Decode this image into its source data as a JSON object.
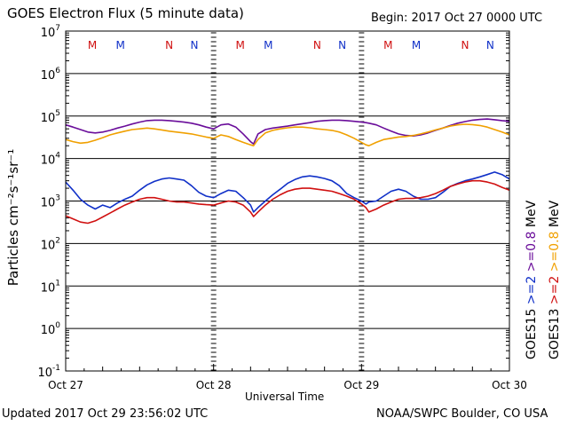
{
  "header": {
    "title": "GOES Electron Flux (5 minute data)",
    "begin": "Begin: 2017 Oct 27 0000 UTC"
  },
  "footer": {
    "updated": "Updated 2017 Oct 29 23:56:02 UTC",
    "credit": "NOAA/SWPC Boulder, CO USA"
  },
  "chart_data": {
    "type": "line",
    "title": "GOES Electron Flux (5 minute data)",
    "xlabel": "Universal Time",
    "ylabel": "Particles cm⁻²s⁻¹sr⁻¹",
    "y_scale": "log",
    "ylim": [
      0.1,
      10000000
    ],
    "y_ticks": [
      {
        "base": "10",
        "exp": "7"
      },
      {
        "base": "10",
        "exp": "6"
      },
      {
        "base": "10",
        "exp": "5"
      },
      {
        "base": "10",
        "exp": "4"
      },
      {
        "base": "10",
        "exp": "3"
      },
      {
        "base": "10",
        "exp": "2"
      },
      {
        "base": "10",
        "exp": "1"
      },
      {
        "base": "10",
        "exp": "0"
      },
      {
        "base": "10",
        "exp": "-1"
      }
    ],
    "x_ticks": [
      "Oct 27",
      "Oct 28",
      "Oct 29",
      "Oct 30"
    ],
    "xlim_days": [
      0,
      3
    ],
    "threshold": 1000,
    "markers": [
      {
        "label": "M",
        "day": 0.18,
        "color": "#d01010"
      },
      {
        "label": "M",
        "day": 0.37,
        "color": "#1030c8"
      },
      {
        "label": "N",
        "day": 0.7,
        "color": "#d01010"
      },
      {
        "label": "N",
        "day": 0.87,
        "color": "#1030c8"
      },
      {
        "label": "M",
        "day": 1.18,
        "color": "#d01010"
      },
      {
        "label": "M",
        "day": 1.37,
        "color": "#1030c8"
      },
      {
        "label": "N",
        "day": 1.7,
        "color": "#d01010"
      },
      {
        "label": "N",
        "day": 1.87,
        "color": "#1030c8"
      },
      {
        "label": "M",
        "day": 2.18,
        "color": "#d01010"
      },
      {
        "label": "M",
        "day": 2.37,
        "color": "#1030c8"
      },
      {
        "label": "N",
        "day": 2.7,
        "color": "#d01010"
      },
      {
        "label": "N",
        "day": 2.87,
        "color": "#1030c8"
      }
    ],
    "legend": [
      {
        "prefix": "GOES15",
        "label": ">=2",
        "unit": "MeV",
        "color": "#1030c8"
      },
      {
        "prefix": "GOES13",
        "label": ">=2",
        "unit": "MeV",
        "color": "#d01010"
      },
      {
        "prefix": "",
        "label": ">=0.8",
        "unit": "MeV",
        "color": "#6a0d9a"
      },
      {
        "prefix": "",
        "label": ">=0.8",
        "unit": "MeV",
        "color": "#f0a000"
      }
    ],
    "series": [
      {
        "name": "GOES15 >=2 MeV",
        "color": "#1030c8",
        "x": [
          0.0,
          0.05,
          0.1,
          0.15,
          0.2,
          0.25,
          0.3,
          0.35,
          0.4,
          0.45,
          0.5,
          0.55,
          0.6,
          0.65,
          0.7,
          0.75,
          0.8,
          0.85,
          0.9,
          0.95,
          1.0,
          1.05,
          1.1,
          1.15,
          1.2,
          1.25,
          1.27,
          1.3,
          1.35,
          1.4,
          1.45,
          1.5,
          1.55,
          1.6,
          1.65,
          1.7,
          1.75,
          1.8,
          1.85,
          1.9,
          1.95,
          2.0,
          2.03,
          2.05,
          2.1,
          2.15,
          2.2,
          2.25,
          2.3,
          2.35,
          2.4,
          2.45,
          2.5,
          2.55,
          2.6,
          2.65,
          2.7,
          2.75,
          2.8,
          2.85,
          2.9,
          2.95,
          3.0
        ],
        "y": [
          2800,
          1800,
          1100,
          800,
          650,
          800,
          700,
          900,
          1100,
          1300,
          1800,
          2400,
          2900,
          3300,
          3500,
          3300,
          3100,
          2300,
          1600,
          1300,
          1200,
          1500,
          1800,
          1700,
          1200,
          800,
          550,
          700,
          1000,
          1400,
          1900,
          2600,
          3200,
          3700,
          3900,
          3700,
          3400,
          3000,
          2300,
          1500,
          1200,
          1000,
          850,
          950,
          1000,
          1300,
          1700,
          1900,
          1700,
          1300,
          1100,
          1100,
          1200,
          1600,
          2200,
          2600,
          3000,
          3300,
          3700,
          4200,
          4800,
          4200,
          3300
        ]
      },
      {
        "name": "GOES13 >=2 MeV",
        "color": "#d01010",
        "x": [
          0.0,
          0.05,
          0.1,
          0.15,
          0.2,
          0.25,
          0.3,
          0.35,
          0.4,
          0.45,
          0.5,
          0.55,
          0.6,
          0.65,
          0.7,
          0.75,
          0.8,
          0.85,
          0.9,
          0.95,
          1.0,
          1.05,
          1.1,
          1.15,
          1.2,
          1.25,
          1.27,
          1.3,
          1.35,
          1.4,
          1.45,
          1.5,
          1.55,
          1.6,
          1.65,
          1.7,
          1.75,
          1.8,
          1.85,
          1.9,
          1.95,
          2.0,
          2.03,
          2.05,
          2.1,
          2.15,
          2.2,
          2.25,
          2.3,
          2.35,
          2.4,
          2.45,
          2.5,
          2.55,
          2.6,
          2.65,
          2.7,
          2.75,
          2.8,
          2.85,
          2.9,
          2.95,
          3.0
        ],
        "y": [
          450,
          380,
          320,
          300,
          340,
          420,
          520,
          650,
          800,
          950,
          1100,
          1200,
          1200,
          1100,
          1000,
          950,
          950,
          900,
          850,
          820,
          800,
          900,
          1000,
          950,
          800,
          550,
          430,
          550,
          800,
          1100,
          1400,
          1700,
          1900,
          2000,
          2000,
          1900,
          1800,
          1700,
          1500,
          1300,
          1100,
          850,
          700,
          550,
          650,
          800,
          950,
          1100,
          1150,
          1150,
          1200,
          1300,
          1500,
          1800,
          2200,
          2500,
          2800,
          3000,
          3000,
          2800,
          2500,
          2100,
          1800
        ]
      },
      {
        "name": "GOES15 >=0.8 MeV",
        "color": "#6a0d9a",
        "x": [
          0.0,
          0.05,
          0.1,
          0.15,
          0.2,
          0.25,
          0.3,
          0.35,
          0.4,
          0.45,
          0.5,
          0.55,
          0.6,
          0.65,
          0.7,
          0.75,
          0.8,
          0.85,
          0.9,
          0.95,
          1.0,
          1.05,
          1.1,
          1.15,
          1.2,
          1.25,
          1.27,
          1.3,
          1.35,
          1.4,
          1.45,
          1.5,
          1.55,
          1.6,
          1.65,
          1.7,
          1.75,
          1.8,
          1.85,
          1.9,
          1.95,
          2.0,
          2.03,
          2.05,
          2.1,
          2.15,
          2.2,
          2.25,
          2.3,
          2.35,
          2.4,
          2.45,
          2.5,
          2.55,
          2.6,
          2.65,
          2.7,
          2.75,
          2.8,
          2.85,
          2.9,
          2.95,
          3.0
        ],
        "y": [
          62000,
          55000,
          48000,
          42000,
          40000,
          42000,
          46000,
          52000,
          58000,
          65000,
          72000,
          78000,
          80000,
          80000,
          78000,
          75000,
          72000,
          68000,
          62000,
          55000,
          50000,
          62000,
          65000,
          55000,
          38000,
          25000,
          22000,
          38000,
          48000,
          52000,
          55000,
          58000,
          62000,
          66000,
          70000,
          75000,
          78000,
          80000,
          80000,
          78000,
          75000,
          72000,
          70000,
          68000,
          62000,
          52000,
          44000,
          38000,
          35000,
          34000,
          36000,
          40000,
          46000,
          52000,
          60000,
          68000,
          74000,
          80000,
          83000,
          85000,
          82000,
          78000,
          75000
        ]
      },
      {
        "name": "GOES13 >=0.8 MeV",
        "color": "#f0a000",
        "x": [
          0.0,
          0.05,
          0.1,
          0.15,
          0.2,
          0.25,
          0.3,
          0.35,
          0.4,
          0.45,
          0.5,
          0.55,
          0.6,
          0.65,
          0.7,
          0.75,
          0.8,
          0.85,
          0.9,
          0.95,
          1.0,
          1.05,
          1.1,
          1.15,
          1.2,
          1.25,
          1.27,
          1.3,
          1.35,
          1.4,
          1.45,
          1.5,
          1.55,
          1.6,
          1.65,
          1.7,
          1.75,
          1.8,
          1.85,
          1.9,
          1.95,
          2.0,
          2.03,
          2.05,
          2.1,
          2.15,
          2.2,
          2.25,
          2.3,
          2.35,
          2.4,
          2.45,
          2.5,
          2.55,
          2.6,
          2.65,
          2.7,
          2.75,
          2.8,
          2.85,
          2.9,
          2.95,
          3.0
        ],
        "y": [
          28000,
          25000,
          23000,
          24000,
          27000,
          31000,
          36000,
          40000,
          44000,
          48000,
          50000,
          52000,
          50000,
          47000,
          44000,
          42000,
          40000,
          38000,
          35000,
          32000,
          30000,
          36000,
          33000,
          28000,
          24000,
          21000,
          20000,
          28000,
          40000,
          46000,
          50000,
          53000,
          55000,
          55000,
          53000,
          50000,
          48000,
          46000,
          42000,
          36000,
          30000,
          24000,
          21000,
          20000,
          24000,
          28000,
          30000,
          32000,
          33000,
          35000,
          38000,
          42000,
          47000,
          52000,
          58000,
          62000,
          64000,
          63000,
          60000,
          55000,
          48000,
          42000,
          36000
        ]
      }
    ]
  }
}
